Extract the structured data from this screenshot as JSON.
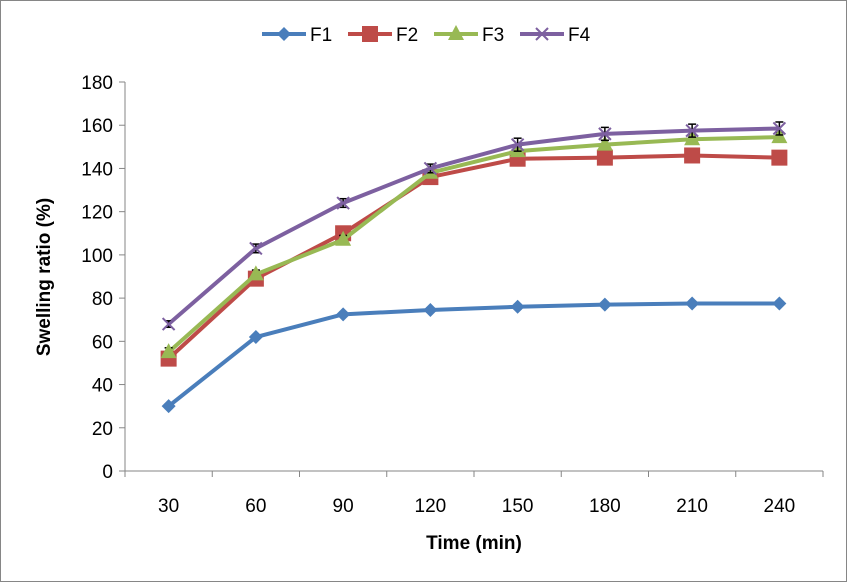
{
  "chart_data": {
    "type": "line",
    "title": "",
    "xlabel": "Time (min)",
    "ylabel": "Swelling ratio (%)",
    "categories": [
      "30",
      "60",
      "90",
      "120",
      "150",
      "180",
      "210",
      "240"
    ],
    "ylim": [
      0,
      180
    ],
    "yticks": [
      0,
      20,
      40,
      60,
      80,
      100,
      120,
      140,
      160,
      180
    ],
    "grid": false,
    "legend_position": "top",
    "series": [
      {
        "name": "F1",
        "color": "#4A7EBB",
        "marker": "diamond",
        "values": [
          30,
          62,
          72.5,
          74.5,
          76,
          77,
          77.5,
          77.5
        ],
        "error": [
          1,
          1,
          1,
          1,
          1,
          1,
          1,
          1
        ]
      },
      {
        "name": "F2",
        "color": "#BE4B48",
        "marker": "square",
        "values": [
          52,
          89,
          110,
          136,
          144.5,
          145,
          146,
          145
        ],
        "error": [
          2,
          2,
          2,
          2,
          2,
          2,
          2,
          3
        ]
      },
      {
        "name": "F3",
        "color": "#98B954",
        "marker": "triangle",
        "values": [
          55,
          91,
          107,
          138,
          148,
          151,
          153.5,
          154.5
        ],
        "error": [
          2,
          2,
          2,
          2,
          2,
          2,
          2,
          2
        ]
      },
      {
        "name": "F4",
        "color": "#7D60A0",
        "marker": "x",
        "values": [
          68,
          103,
          124,
          140,
          151,
          156,
          157.5,
          158.5
        ],
        "error": [
          1.5,
          2,
          2,
          2,
          3,
          3,
          3,
          3
        ]
      }
    ]
  }
}
